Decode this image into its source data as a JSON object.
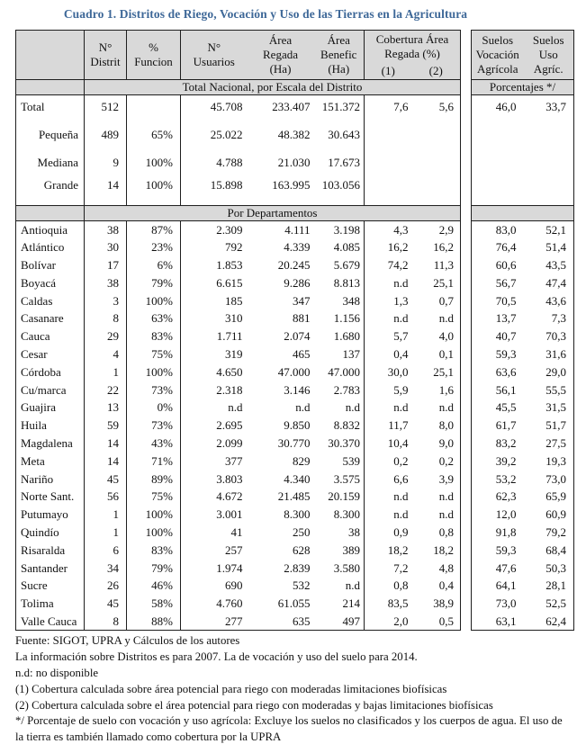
{
  "title": "Cuadro 1. Distritos de Riego, Vocación y Uso de las Tierras en la Agricultura",
  "colors": {
    "accent": "#3E6898",
    "header_bg": "#D9D9D9",
    "border": "#1f1f1f"
  },
  "table": {
    "headers": {
      "distritos": "N°\nDistrit",
      "funcionamiento": "%\nFuncion",
      "usuarios": "N°\nUsuarios",
      "area_regada": "Área\nRegada\n(Ha)",
      "area_beneficiada": "Área\nBenefic\n(Ha)",
      "cobertura": "Cobertura Área\nRegada (%)",
      "cobertura_1": "(1)",
      "cobertura_2": "(2)",
      "suelos_vocacion": "Suelos\nVocación\nAgrícola",
      "suelos_uso": "Suelos\nUso\nAgríc."
    },
    "sections": {
      "nacional": "Total Nacional, por Escala del Distrito",
      "porcentajes": "Porcentajes */",
      "departamentos": "Por Departamentos"
    },
    "national_rows": [
      {
        "label": "Total",
        "indent": false,
        "cells": [
          "512",
          "",
          "45.708",
          "233.407",
          "151.372",
          "7,6",
          "5,6"
        ],
        "suelos": [
          "46,0",
          "33,7"
        ]
      },
      {
        "label": "Pequeña",
        "indent": true,
        "cells": [
          "489",
          "65%",
          "25.022",
          "48.382",
          "30.643",
          "",
          ""
        ],
        "suelos": [
          "",
          ""
        ]
      },
      {
        "label": "Mediana",
        "indent": true,
        "cells": [
          "9",
          "100%",
          "4.788",
          "21.030",
          "17.673",
          "",
          ""
        ],
        "suelos": [
          "",
          ""
        ]
      },
      {
        "label": "Grande",
        "indent": true,
        "cells": [
          "14",
          "100%",
          "15.898",
          "163.995",
          "103.056",
          "",
          ""
        ],
        "suelos": [
          "",
          ""
        ]
      }
    ],
    "department_rows": [
      {
        "label": "Antioquia",
        "cells": [
          "38",
          "87%",
          "2.309",
          "4.111",
          "3.198",
          "4,3",
          "2,9"
        ],
        "suelos": [
          "83,0",
          "52,1"
        ]
      },
      {
        "label": "Atlántico",
        "cells": [
          "30",
          "23%",
          "792",
          "4.339",
          "4.085",
          "16,2",
          "16,2"
        ],
        "suelos": [
          "76,4",
          "51,4"
        ]
      },
      {
        "label": "Bolívar",
        "cells": [
          "17",
          "6%",
          "1.853",
          "20.245",
          "5.679",
          "74,2",
          "11,3"
        ],
        "suelos": [
          "60,6",
          "43,5"
        ]
      },
      {
        "label": "Boyacá",
        "cells": [
          "38",
          "79%",
          "6.615",
          "9.286",
          "8.813",
          "n.d",
          "25,1"
        ],
        "suelos": [
          "56,7",
          "47,4"
        ]
      },
      {
        "label": "Caldas",
        "cells": [
          "3",
          "100%",
          "185",
          "347",
          "348",
          "1,3",
          "0,7"
        ],
        "suelos": [
          "70,5",
          "43,6"
        ]
      },
      {
        "label": "Casanare",
        "cells": [
          "8",
          "63%",
          "310",
          "881",
          "1.156",
          "n.d",
          "n.d"
        ],
        "suelos": [
          "13,7",
          "7,3"
        ]
      },
      {
        "label": "Cauca",
        "cells": [
          "29",
          "83%",
          "1.711",
          "2.074",
          "1.680",
          "5,7",
          "4,0"
        ],
        "suelos": [
          "40,7",
          "70,3"
        ]
      },
      {
        "label": "Cesar",
        "cells": [
          "4",
          "75%",
          "319",
          "465",
          "137",
          "0,4",
          "0,1"
        ],
        "suelos": [
          "59,3",
          "31,6"
        ]
      },
      {
        "label": "Córdoba",
        "cells": [
          "1",
          "100%",
          "4.650",
          "47.000",
          "47.000",
          "30,0",
          "25,1"
        ],
        "suelos": [
          "63,6",
          "29,0"
        ]
      },
      {
        "label": "Cu/marca",
        "cells": [
          "22",
          "73%",
          "2.318",
          "3.146",
          "2.783",
          "5,9",
          "1,6"
        ],
        "suelos": [
          "56,1",
          "55,5"
        ]
      },
      {
        "label": "Guajira",
        "cells": [
          "13",
          "0%",
          "n.d",
          "n.d",
          "n.d",
          "n.d",
          "n.d"
        ],
        "suelos": [
          "45,5",
          "31,5"
        ]
      },
      {
        "label": "Huila",
        "cells": [
          "59",
          "73%",
          "2.695",
          "9.850",
          "8.832",
          "11,7",
          "8,0"
        ],
        "suelos": [
          "61,7",
          "51,7"
        ]
      },
      {
        "label": "Magdalena",
        "cells": [
          "14",
          "43%",
          "2.099",
          "30.770",
          "30.370",
          "10,4",
          "9,0"
        ],
        "suelos": [
          "83,2",
          "27,5"
        ]
      },
      {
        "label": "Meta",
        "cells": [
          "14",
          "71%",
          "377",
          "829",
          "539",
          "0,2",
          "0,2"
        ],
        "suelos": [
          "39,2",
          "19,3"
        ]
      },
      {
        "label": "Nariño",
        "cells": [
          "45",
          "89%",
          "3.803",
          "4.340",
          "3.575",
          "6,6",
          "3,9"
        ],
        "suelos": [
          "53,2",
          "73,0"
        ]
      },
      {
        "label": "Norte Sant.",
        "cells": [
          "56",
          "75%",
          "4.672",
          "21.485",
          "20.159",
          "n.d",
          "n.d"
        ],
        "suelos": [
          "62,3",
          "65,9"
        ]
      },
      {
        "label": "Putumayo",
        "cells": [
          "1",
          "100%",
          "3.001",
          "8.300",
          "8.300",
          "n.d",
          "n.d"
        ],
        "suelos": [
          "12,0",
          "60,9"
        ]
      },
      {
        "label": "Quindío",
        "cells": [
          "1",
          "100%",
          "41",
          "250",
          "38",
          "0,9",
          "0,8"
        ],
        "suelos": [
          "91,8",
          "79,2"
        ]
      },
      {
        "label": "Risaralda",
        "cells": [
          "6",
          "83%",
          "257",
          "628",
          "389",
          "18,2",
          "18,2"
        ],
        "suelos": [
          "59,3",
          "68,4"
        ]
      },
      {
        "label": "Santander",
        "cells": [
          "34",
          "79%",
          "1.974",
          "2.839",
          "3.580",
          "7,2",
          "4,8"
        ],
        "suelos": [
          "47,6",
          "50,3"
        ]
      },
      {
        "label": "Sucre",
        "cells": [
          "26",
          "46%",
          "690",
          "532",
          "n.d",
          "0,8",
          "0,4"
        ],
        "suelos": [
          "64,1",
          "28,1"
        ]
      },
      {
        "label": "Tolima",
        "cells": [
          "45",
          "58%",
          "4.760",
          "61.055",
          "214",
          "83,5",
          "38,9"
        ],
        "suelos": [
          "73,0",
          "52,5"
        ]
      },
      {
        "label": "Valle Cauca",
        "cells": [
          "8",
          "88%",
          "277",
          "635",
          "497",
          "2,0",
          "0,5"
        ],
        "suelos": [
          "63,1",
          "62,4"
        ]
      }
    ]
  },
  "footnotes": [
    "Fuente: SIGOT, UPRA y Cálculos de los autores",
    "La información sobre Distritos es para 2007. La de vocación y uso del suelo para 2014.",
    "n.d: no disponible",
    "(1) Cobertura calculada sobre área potencial para riego con moderadas limitaciones biofísicas",
    "(2) Cobertura calculada sobre el área potencial para riego con moderadas y bajas limitaciones biofísicas",
    "*/ Porcentaje de suelo con vocación y uso agrícola: Excluye los suelos no clasificados y los cuerpos de agua.  El uso de la tierra es también llamado como cobertura por la UPRA"
  ]
}
